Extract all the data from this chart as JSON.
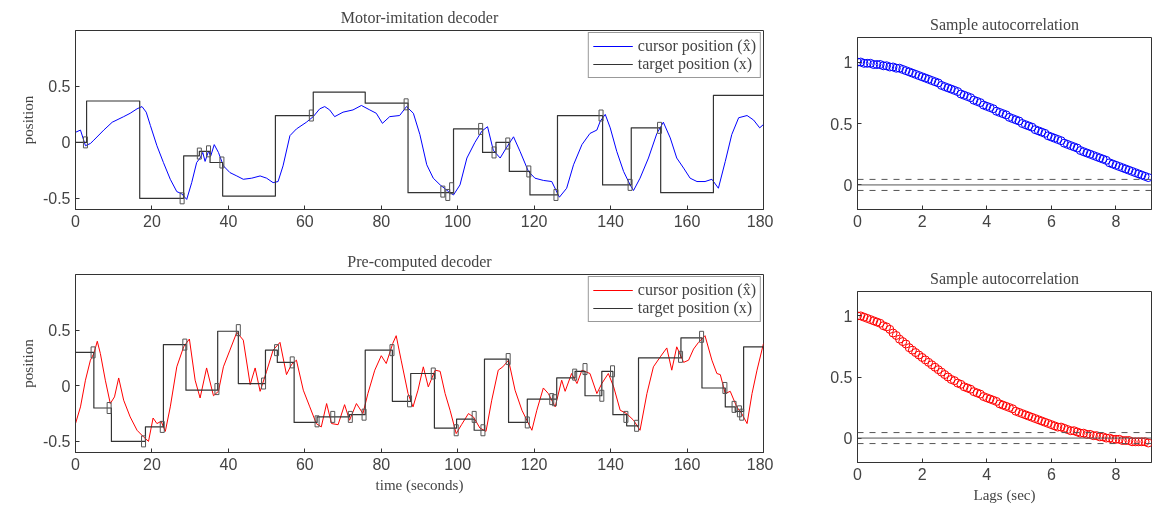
{
  "chart_data": [
    {
      "type": "line",
      "title": "Motor-imitation decoder",
      "ylabel": "position",
      "xlim": [
        0,
        180
      ],
      "ylim": [
        -0.6,
        1.0
      ],
      "xticks": [
        0,
        20,
        40,
        60,
        80,
        100,
        120,
        140,
        160,
        180
      ],
      "yticks": [
        -0.5,
        0,
        0.5
      ],
      "legend": "top right",
      "series": [
        {
          "name": "cursor position (x̂)",
          "type": "line",
          "color": "#0000ff",
          "x": [
            0,
            1.3,
            2.6,
            3.9,
            4.8,
            7.4,
            9.6,
            12.6,
            14.3,
            16.1,
            17.4,
            18.5,
            19.6,
            21.3,
            23,
            24.8,
            26.5,
            27.8,
            29.1,
            30.4,
            31.7,
            32.6,
            33.3,
            33.9,
            34.8,
            35.4,
            36.3,
            37.4,
            38.7,
            40.4,
            42.2,
            43.9,
            46.1,
            48.3,
            50,
            51.7,
            53,
            54.3,
            56.1,
            57.8,
            60.4,
            62.2,
            63.9,
            65.2,
            66.5,
            67.8,
            70,
            72.6,
            74.8,
            77,
            78.7,
            80.3,
            82.2,
            84.8,
            86.6,
            88.4,
            90.1,
            91.9,
            93.6,
            95.4,
            97.6,
            98.9,
            100.6,
            102.4,
            104.5,
            106.3,
            107.8,
            109.3,
            111.1,
            112.7,
            114.6,
            116.3,
            118.5,
            120.2,
            122.4,
            124.6,
            126.6,
            128.5,
            130.3,
            132.5,
            134.6,
            136.4,
            137.3,
            138.6,
            139.9,
            141.6,
            143.4,
            145.1,
            146,
            147.7,
            149.9,
            152.1,
            153.8,
            155.6,
            157.3,
            159.1,
            160.8,
            162.6,
            164.7,
            166.5,
            168.2,
            170,
            171.7,
            173.5,
            175.7,
            177.4,
            179,
            180
          ],
          "values": [
            0.09,
            0.11,
            -0.03,
            -0.01,
            0.02,
            0.11,
            0.18,
            0.23,
            0.26,
            0.3,
            0.32,
            0.27,
            0.15,
            -0.03,
            -0.18,
            -0.33,
            -0.44,
            -0.46,
            -0.51,
            -0.36,
            -0.18,
            -0.14,
            -0.09,
            -0.17,
            -0.08,
            -0.12,
            -0.02,
            -0.09,
            -0.21,
            -0.27,
            -0.3,
            -0.33,
            -0.32,
            -0.3,
            -0.32,
            -0.36,
            -0.35,
            -0.21,
            0.06,
            0.12,
            0.18,
            0.23,
            0.3,
            0.32,
            0.29,
            0.23,
            0.27,
            0.29,
            0.33,
            0.29,
            0.26,
            0.17,
            0.23,
            0.24,
            0.32,
            0.26,
            0.07,
            -0.2,
            -0.32,
            -0.38,
            -0.44,
            -0.47,
            -0.38,
            -0.14,
            0.0,
            0.1,
            0.14,
            -0.07,
            -0.14,
            -0.05,
            0.05,
            -0.08,
            -0.26,
            -0.32,
            -0.34,
            -0.35,
            -0.49,
            -0.41,
            -0.2,
            -0.02,
            0.08,
            0.11,
            0.19,
            0.25,
            0.13,
            -0.08,
            -0.26,
            -0.38,
            -0.43,
            -0.32,
            -0.14,
            0.08,
            0.18,
            0.04,
            -0.14,
            -0.23,
            -0.32,
            -0.35,
            -0.35,
            -0.33,
            -0.41,
            -0.17,
            0.07,
            0.22,
            0.24,
            0.2,
            0.13,
            0.16
          ]
        },
        {
          "name": "target position (x)",
          "type": "step",
          "color": "#333333",
          "x": [
            0,
            2.9,
            16.8,
            28.3,
            32.4,
            35.2,
            38.5,
            52.3,
            62.2,
            75.8,
            87,
            98.9,
            106.5,
            110,
            113.5,
            118.9,
            126.1,
            137.9,
            145.4,
            153.1,
            166.9,
            180
          ],
          "values": [
            0,
            0.37,
            -0.5,
            -0.12,
            -0.08,
            -0.18,
            -0.48,
            0.24,
            0.45,
            0.35,
            -0.45,
            0.12,
            -0.09,
            0,
            -0.26,
            -0.47,
            0.24,
            -0.38,
            0.13,
            -0.45,
            0.42,
            0.42
          ]
        },
        {
          "type": "scatter",
          "marker": "square",
          "color": "#555555",
          "x": [
            2.6,
            27.9,
            32.4,
            34.8,
            38.3,
            61.7,
            86.5,
            96.1,
            97.4,
            98.4,
            106,
            109.5,
            113.1,
            118.6,
            125.7,
            137.5,
            145.1,
            152.8
          ],
          "values": [
            0,
            -0.5,
            -0.1,
            -0.08,
            -0.18,
            0.24,
            0.34,
            -0.44,
            -0.47,
            -0.41,
            0.12,
            -0.09,
            -0.01,
            -0.26,
            -0.47,
            0.24,
            -0.38,
            0.13
          ]
        }
      ]
    },
    {
      "type": "scatter",
      "title": "Sample autocorrelation",
      "xlim": [
        0,
        9.1
      ],
      "ylim": [
        -0.2,
        1.2
      ],
      "xticks": [
        0,
        2,
        4,
        6,
        8
      ],
      "yticks": [
        0,
        0.5,
        1
      ],
      "marker": "circle",
      "color": "#0000ff",
      "x": [
        0,
        0.1,
        0.2,
        0.3,
        0.4,
        0.5,
        0.6,
        0.7,
        0.8,
        0.9,
        1,
        1.1,
        1.2,
        1.3,
        1.4,
        1.5,
        1.6,
        1.7,
        1.8,
        1.9,
        2,
        2.1,
        2.2,
        2.3,
        2.4,
        2.5,
        2.6,
        2.7,
        2.8,
        2.9,
        3,
        3.1,
        3.2,
        3.3,
        3.4,
        3.5,
        3.6,
        3.7,
        3.8,
        3.9,
        4,
        4.1,
        4.2,
        4.3,
        4.4,
        4.5,
        4.6,
        4.7,
        4.8,
        4.9,
        5,
        5.1,
        5.2,
        5.3,
        5.4,
        5.5,
        5.6,
        5.7,
        5.8,
        5.9,
        6,
        6.1,
        6.2,
        6.3,
        6.4,
        6.5,
        6.6,
        6.7,
        6.8,
        6.9,
        7,
        7.1,
        7.2,
        7.3,
        7.4,
        7.5,
        7.6,
        7.7,
        7.8,
        7.9,
        8,
        8.1,
        8.2,
        8.3,
        8.4,
        8.5,
        8.6,
        8.7,
        8.8,
        8.9,
        9
      ],
      "values": [
        1.0,
        1.0,
        0.99,
        0.99,
        0.99,
        0.98,
        0.98,
        0.98,
        0.97,
        0.97,
        0.96,
        0.96,
        0.95,
        0.95,
        0.94,
        0.93,
        0.92,
        0.91,
        0.9,
        0.89,
        0.88,
        0.87,
        0.86,
        0.85,
        0.84,
        0.83,
        0.81,
        0.8,
        0.79,
        0.78,
        0.77,
        0.76,
        0.74,
        0.73,
        0.72,
        0.71,
        0.69,
        0.68,
        0.67,
        0.65,
        0.64,
        0.63,
        0.62,
        0.6,
        0.59,
        0.58,
        0.57,
        0.55,
        0.54,
        0.53,
        0.52,
        0.5,
        0.49,
        0.48,
        0.47,
        0.45,
        0.44,
        0.43,
        0.42,
        0.4,
        0.39,
        0.38,
        0.37,
        0.36,
        0.34,
        0.33,
        0.32,
        0.31,
        0.3,
        0.28,
        0.27,
        0.26,
        0.25,
        0.24,
        0.23,
        0.22,
        0.21,
        0.2,
        0.18,
        0.17,
        0.16,
        0.15,
        0.14,
        0.13,
        0.12,
        0.11,
        0.1,
        0.09,
        0.08,
        0.07,
        0.06
      ],
      "ref_lines": [
        {
          "axis": "y",
          "value": 0,
          "color": "#555555",
          "line_style": "solid"
        },
        {
          "axis": "y",
          "value": 0.045,
          "color": "#555555",
          "line_style": "dashed"
        },
        {
          "axis": "y",
          "value": -0.045,
          "color": "#555555",
          "line_style": "dashed"
        }
      ]
    },
    {
      "type": "line",
      "title": "Pre-computed decoder",
      "xlabel": "time (seconds)",
      "ylabel": "position",
      "xlim": [
        0,
        180
      ],
      "ylim": [
        -0.6,
        1.0
      ],
      "xticks": [
        0,
        20,
        40,
        60,
        80,
        100,
        120,
        140,
        160,
        180
      ],
      "yticks": [
        -0.5,
        0,
        0.5
      ],
      "legend": "top right",
      "series": [
        {
          "name": "cursor position (x̂)",
          "type": "line",
          "color": "#ff0000",
          "x": [
            0,
            1.3,
            2.6,
            3.9,
            4.8,
            5.7,
            6.5,
            7.8,
            9.1,
            10.2,
            11.3,
            12.6,
            14.3,
            16.1,
            17.8,
            19.1,
            20.3,
            21.3,
            22.4,
            23.5,
            24.8,
            26.5,
            28.3,
            29.8,
            31.3,
            32.6,
            34.3,
            36.1,
            37.4,
            38.7,
            40.4,
            42.2,
            43.9,
            45.7,
            47,
            48.3,
            50,
            51.7,
            53.5,
            55.2,
            56.5,
            57.8,
            59.6,
            61.3,
            63,
            64.3,
            65.7,
            67,
            68.7,
            70.4,
            71.7,
            73.5,
            75.2,
            76.5,
            78.3,
            80,
            81.3,
            83,
            83.9,
            85.2,
            87,
            88.3,
            89.6,
            91,
            92.3,
            94.1,
            95.4,
            96.7,
            98,
            99.6,
            101,
            102.8,
            104.1,
            105.8,
            107.4,
            108.9,
            110.6,
            111.8,
            113.3,
            115,
            116.8,
            119.4,
            120.7,
            122.4,
            123.7,
            125.5,
            127.2,
            128.1,
            129.8,
            131.2,
            132.5,
            134.6,
            136.4,
            137.7,
            139.4,
            140.8,
            142.5,
            144.2,
            146,
            147.7,
            149.5,
            151.2,
            153,
            154.7,
            156,
            157.3,
            159.1,
            160.4,
            161.7,
            163,
            164.7,
            166.5,
            167.8,
            168.7,
            170,
            171.3,
            173,
            174.3,
            175.7,
            177,
            178.3,
            180
          ],
          "values": [
            -0.34,
            -0.19,
            0.05,
            0.23,
            0.29,
            0.4,
            0.29,
            0.05,
            -0.16,
            -0.1,
            0.07,
            -0.13,
            -0.28,
            -0.4,
            -0.46,
            -0.5,
            -0.29,
            -0.34,
            -0.32,
            -0.41,
            -0.19,
            0.17,
            0.35,
            0.42,
            0.05,
            -0.11,
            0.16,
            -0.09,
            -0.05,
            0.17,
            0.32,
            0.48,
            0.41,
            0.01,
            0.16,
            -0.05,
            0.13,
            0.32,
            0.39,
            0.1,
            0.19,
            0.23,
            -0.04,
            -0.19,
            -0.34,
            -0.37,
            -0.16,
            -0.34,
            -0.35,
            -0.17,
            -0.31,
            -0.16,
            -0.25,
            -0.07,
            0.14,
            0.27,
            0.2,
            0.38,
            0.45,
            0.23,
            -0.07,
            -0.19,
            -0.04,
            0.17,
            -0.01,
            0.14,
            0.13,
            -0.07,
            -0.22,
            -0.43,
            -0.35,
            -0.25,
            -0.28,
            -0.38,
            -0.41,
            -0.13,
            0.14,
            0.17,
            0.23,
            -0.04,
            -0.22,
            -0.4,
            -0.22,
            -0.02,
            -0.07,
            -0.19,
            0.05,
            -0.05,
            0.11,
            0.02,
            0.14,
            0.11,
            -0.07,
            0.02,
            0.11,
            -0.01,
            -0.22,
            -0.25,
            -0.31,
            -0.4,
            -0.07,
            0.17,
            0.26,
            0.34,
            0.14,
            0.35,
            0.21,
            0.23,
            0.33,
            0.39,
            0.45,
            0.23,
            0.11,
            0.1,
            -0.07,
            -0.05,
            -0.19,
            -0.25,
            -0.34,
            -0.07,
            0.14,
            0.38
          ]
        },
        {
          "name": "target position (x)",
          "type": "step",
          "color": "#333333",
          "x": [
            0,
            4.8,
            9.4,
            18.3,
            23,
            28.9,
            37.2,
            42.6,
            49.7,
            52.8,
            57.2,
            63.2,
            71.7,
            75.8,
            82.9,
            87.7,
            93.9,
            99.7,
            104.3,
            107,
            113.3,
            118.2,
            125.9,
            130.7,
            133.3,
            137.7,
            140.6,
            144.2,
            147.3,
            158.4,
            163.9,
            170,
            172.6,
            174.8,
            180
          ],
          "values": [
            0.3,
            -0.2,
            -0.5,
            -0.37,
            0.37,
            -0.04,
            0.49,
            0.02,
            0.32,
            0.21,
            -0.33,
            -0.28,
            -0.26,
            0.32,
            -0.14,
            0.11,
            -0.38,
            -0.3,
            -0.4,
            0.24,
            -0.33,
            -0.12,
            0.07,
            0.13,
            -0.09,
            0.13,
            -0.26,
            -0.36,
            0.25,
            0.43,
            -0.02,
            -0.19,
            -0.23,
            0.35,
            0.35
          ]
        },
        {
          "type": "scatter",
          "marker": "square",
          "color": "#555555",
          "x": [
            4.6,
            8.8,
            17.8,
            22.7,
            28.6,
            37,
            42.6,
            49.2,
            52.6,
            56.7,
            63.2,
            67.3,
            71.9,
            75.5,
            82.8,
            87.4,
            93.6,
            99.6,
            104.3,
            106.6,
            113.2,
            118.2,
            124.6,
            125.3,
            130.6,
            133.3,
            137.7,
            140.5,
            144,
            146.8,
            158.3,
            163.8,
            169.9,
            172.3,
            173.7,
            174.3
          ],
          "values": [
            0.3,
            -0.2,
            -0.5,
            -0.37,
            0.37,
            -0.03,
            0.5,
            0.02,
            0.32,
            0.21,
            -0.32,
            -0.28,
            -0.28,
            -0.26,
            0.32,
            -0.14,
            0.11,
            -0.4,
            -0.28,
            -0.4,
            0.24,
            -0.33,
            -0.12,
            -0.13,
            0.1,
            0.15,
            -0.09,
            0.13,
            -0.28,
            -0.36,
            0.26,
            0.44,
            -0.02,
            -0.19,
            -0.23,
            -0.26
          ]
        }
      ]
    },
    {
      "type": "scatter",
      "title": "Sample autocorrelation",
      "xlabel": "Lags (sec)",
      "xlim": [
        0,
        9.1
      ],
      "ylim": [
        -0.2,
        1.2
      ],
      "xticks": [
        0,
        2,
        4,
        6,
        8
      ],
      "yticks": [
        0,
        0.5,
        1
      ],
      "marker": "circle",
      "color": "#ff0000",
      "x": [
        0,
        0.1,
        0.2,
        0.3,
        0.4,
        0.5,
        0.6,
        0.7,
        0.8,
        0.9,
        1,
        1.1,
        1.2,
        1.3,
        1.4,
        1.5,
        1.6,
        1.7,
        1.8,
        1.9,
        2,
        2.1,
        2.2,
        2.3,
        2.4,
        2.5,
        2.6,
        2.7,
        2.8,
        2.9,
        3,
        3.1,
        3.2,
        3.3,
        3.4,
        3.5,
        3.6,
        3.7,
        3.8,
        3.9,
        4,
        4.1,
        4.2,
        4.3,
        4.4,
        4.5,
        4.6,
        4.7,
        4.8,
        4.9,
        5,
        5.1,
        5.2,
        5.3,
        5.4,
        5.5,
        5.6,
        5.7,
        5.8,
        5.9,
        6,
        6.1,
        6.2,
        6.3,
        6.4,
        6.5,
        6.6,
        6.7,
        6.8,
        6.9,
        7,
        7.1,
        7.2,
        7.3,
        7.4,
        7.5,
        7.6,
        7.7,
        7.8,
        7.9,
        8,
        8.1,
        8.2,
        8.3,
        8.4,
        8.5,
        8.6,
        8.7,
        8.8,
        8.9,
        9
      ],
      "values": [
        1.0,
        1.0,
        0.99,
        0.98,
        0.97,
        0.96,
        0.95,
        0.94,
        0.92,
        0.91,
        0.89,
        0.86,
        0.84,
        0.81,
        0.79,
        0.77,
        0.74,
        0.72,
        0.7,
        0.68,
        0.66,
        0.64,
        0.62,
        0.6,
        0.58,
        0.56,
        0.54,
        0.52,
        0.5,
        0.48,
        0.47,
        0.45,
        0.44,
        0.42,
        0.41,
        0.4,
        0.38,
        0.37,
        0.36,
        0.34,
        0.33,
        0.32,
        0.31,
        0.3,
        0.28,
        0.27,
        0.26,
        0.25,
        0.24,
        0.22,
        0.21,
        0.2,
        0.19,
        0.18,
        0.17,
        0.16,
        0.15,
        0.14,
        0.13,
        0.12,
        0.11,
        0.1,
        0.09,
        0.09,
        0.08,
        0.07,
        0.06,
        0.06,
        0.05,
        0.04,
        0.04,
        0.03,
        0.03,
        0.02,
        0.02,
        0.01,
        0.01,
        0.0,
        0.0,
        -0.01,
        -0.01,
        -0.01,
        -0.02,
        -0.02,
        -0.02,
        -0.03,
        -0.03,
        -0.03,
        -0.03,
        -0.03,
        -0.04
      ],
      "ref_lines": [
        {
          "axis": "y",
          "value": 0,
          "color": "#555555",
          "line_style": "solid"
        },
        {
          "axis": "y",
          "value": 0.045,
          "color": "#555555",
          "line_style": "dashed"
        },
        {
          "axis": "y",
          "value": -0.045,
          "color": "#555555",
          "line_style": "dashed"
        }
      ]
    }
  ]
}
